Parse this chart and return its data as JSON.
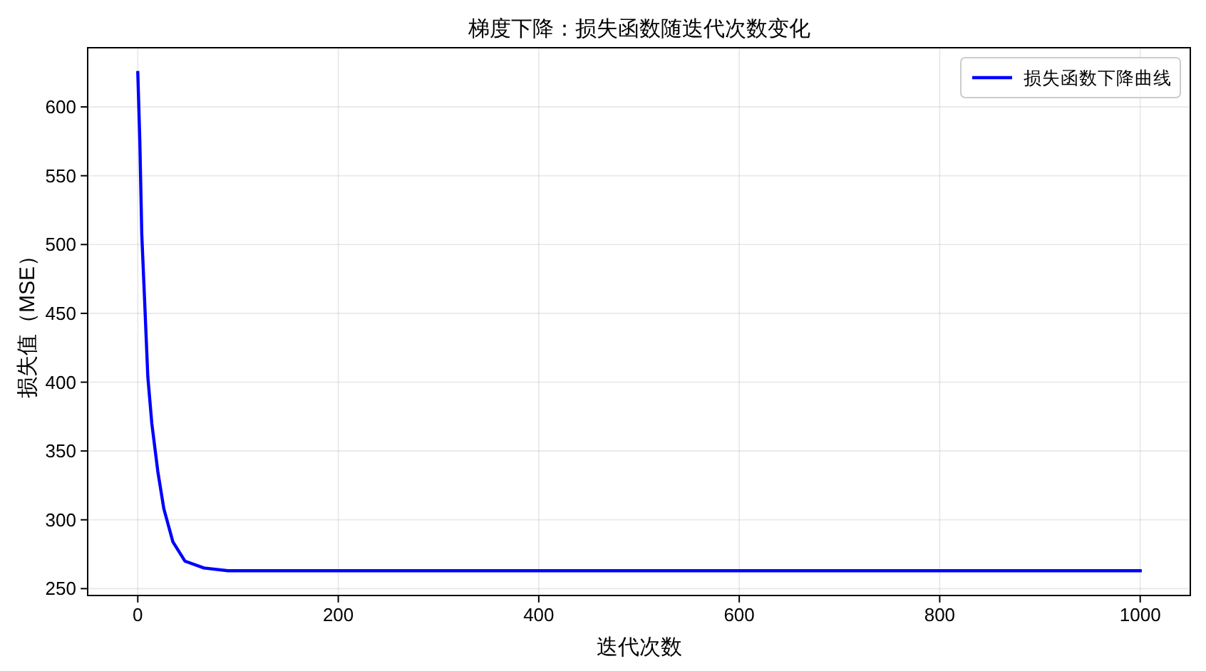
{
  "chart_data": {
    "type": "line",
    "title": "梯度下降：损失函数随迭代次数变化",
    "xlabel": "迭代次数",
    "ylabel": "损失值（MSE）",
    "series": [
      {
        "name": "损失函数下降曲线",
        "color": "#0000ff",
        "x": [
          0,
          2,
          4,
          7,
          10,
          14,
          20,
          26,
          35,
          47,
          66,
          90,
          200,
          400,
          600,
          800,
          1000
        ],
        "values": [
          625,
          576,
          507,
          456,
          404,
          370,
          335,
          308,
          284,
          270,
          265,
          263,
          263,
          263,
          263,
          263,
          263
        ]
      }
    ],
    "xlim": [
      -50,
      1050
    ],
    "ylim": [
      245,
      643
    ],
    "xticks": [
      0,
      200,
      400,
      600,
      800,
      1000
    ],
    "yticks": [
      250,
      300,
      350,
      400,
      450,
      500,
      550,
      600
    ],
    "grid": true,
    "legend": "top right",
    "marker": "none",
    "line_style": "solid"
  }
}
